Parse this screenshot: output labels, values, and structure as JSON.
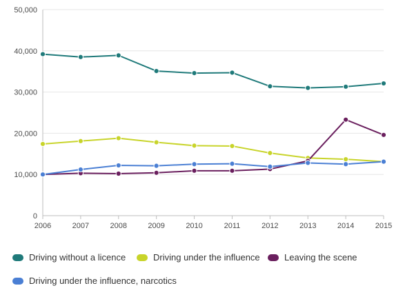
{
  "chart_data": {
    "type": "line",
    "categories": [
      "2006",
      "2007",
      "2008",
      "2009",
      "2010",
      "2011",
      "2012",
      "2013",
      "2014",
      "2015"
    ],
    "y_ticks": [
      "0",
      "10,000",
      "20,000",
      "30,000",
      "40,000",
      "50,000"
    ],
    "ylim": [
      0,
      50000
    ],
    "grid": true,
    "legend_position": "bottom",
    "series": [
      {
        "name": "Driving without a licence",
        "color": "#1f7a7a",
        "values": [
          39200,
          38500,
          38900,
          35100,
          34600,
          34700,
          31400,
          31000,
          31300,
          32100
        ]
      },
      {
        "name": "Driving under the influence",
        "color": "#c8d42a",
        "values": [
          17400,
          18100,
          18800,
          17800,
          17000,
          16900,
          15200,
          14000,
          13700,
          13100
        ]
      },
      {
        "name": "Leaving the scene",
        "color": "#6a1f5e",
        "values": [
          10000,
          10300,
          10200,
          10400,
          10900,
          10900,
          11300,
          13300,
          23300,
          19600
        ]
      },
      {
        "name": "Driving under the influence, narcotics",
        "color": "#4a7fd4",
        "values": [
          10000,
          11200,
          12200,
          12100,
          12500,
          12600,
          11900,
          12800,
          12500,
          13100
        ]
      }
    ]
  }
}
